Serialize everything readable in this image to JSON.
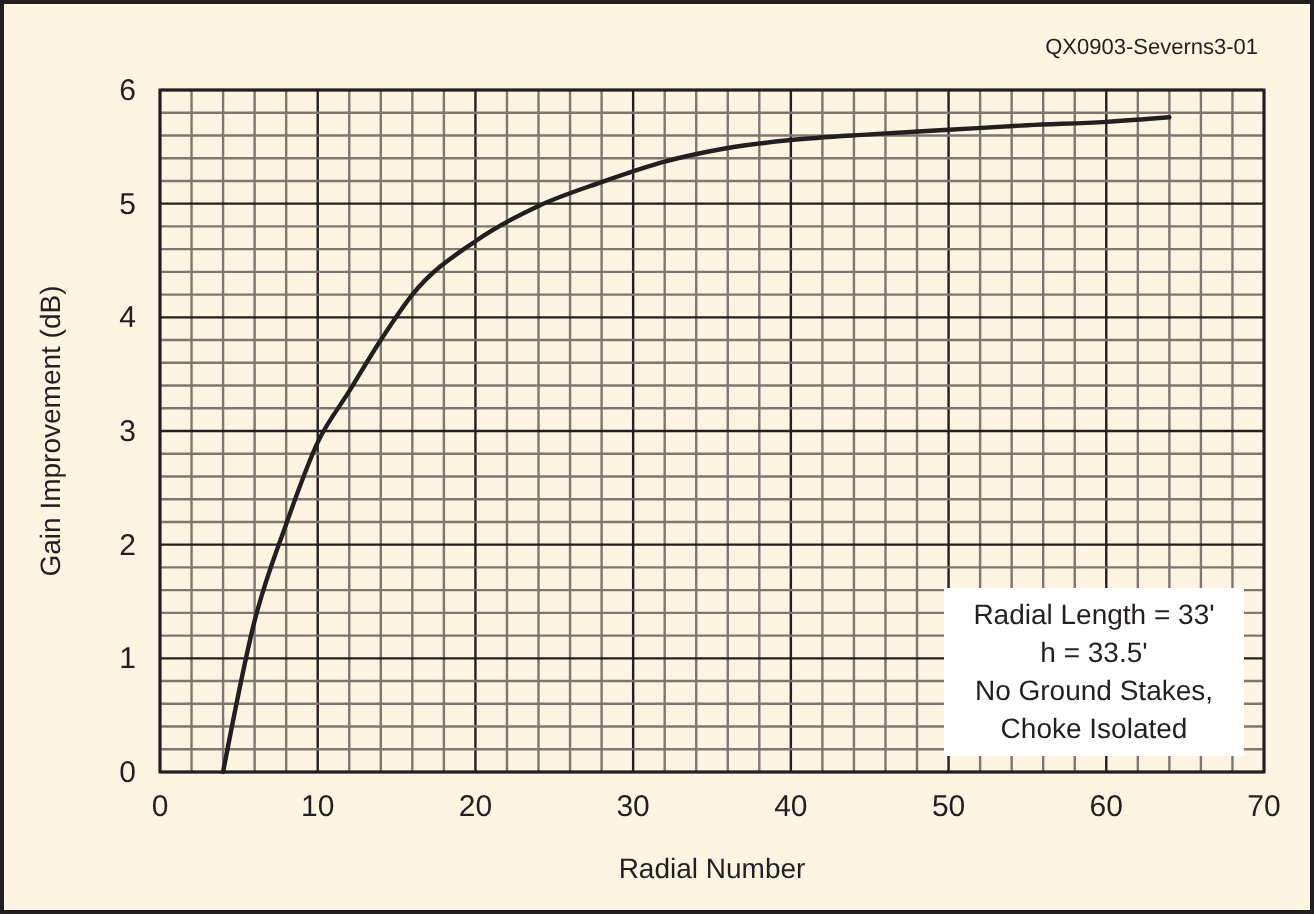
{
  "chart_data": {
    "type": "line",
    "xlabel": "Radial Number",
    "ylabel": "Gain Improvement (dB)",
    "x": [
      4,
      6,
      8,
      10,
      12,
      14,
      16,
      20,
      24,
      28,
      32,
      36,
      40,
      45,
      50,
      55,
      60,
      64
    ],
    "series": [
      {
        "color": "#231f20",
        "values": [
          0,
          1.33,
          2.18,
          2.9,
          3.35,
          3.8,
          4.2,
          4.67,
          4.98,
          5.19,
          5.37,
          5.49,
          5.56,
          5.61,
          5.65,
          5.69,
          5.72,
          5.76
        ]
      }
    ],
    "xlim": [
      0,
      70
    ],
    "ylim": [
      0,
      6
    ],
    "xticks": [
      0,
      {
        "value": 2,
        "label": null
      },
      {
        "value": 4,
        "label": null
      },
      {
        "value": 6,
        "label": null
      },
      {
        "value": 8,
        "label": null
      },
      10,
      {
        "value": 12,
        "label": null
      },
      {
        "value": 14,
        "label": null
      },
      {
        "value": 16,
        "label": null
      },
      {
        "value": 18,
        "label": null
      },
      20,
      {
        "value": 22,
        "label": null
      },
      {
        "value": 24,
        "label": null
      },
      {
        "value": 26,
        "label": null
      },
      {
        "value": 28,
        "label": null
      },
      30,
      {
        "value": 32,
        "label": null
      },
      {
        "value": 34,
        "label": null
      },
      {
        "value": 36,
        "label": null
      },
      {
        "value": 38,
        "label": null
      },
      40,
      {
        "value": 42,
        "label": null
      },
      {
        "value": 44,
        "label": null
      },
      {
        "value": 46,
        "label": null
      },
      {
        "value": 48,
        "label": null
      },
      50,
      {
        "value": 52,
        "label": null
      },
      {
        "value": 54,
        "label": null
      },
      {
        "value": 56,
        "label": null
      },
      {
        "value": 58,
        "label": null
      },
      60,
      {
        "value": 62,
        "label": null
      },
      {
        "value": 64,
        "label": null
      },
      {
        "value": 66,
        "label": null
      },
      {
        "value": 68,
        "label": null
      },
      70
    ],
    "yticks": [
      0,
      {
        "value": 0.2,
        "label": null
      },
      {
        "value": 0.4,
        "label": null
      },
      {
        "value": 0.6,
        "label": null
      },
      {
        "value": 0.8,
        "label": null
      },
      1,
      {
        "value": 1.2,
        "label": null
      },
      {
        "value": 1.4,
        "label": null
      },
      {
        "value": 1.6,
        "label": null
      },
      {
        "value": 1.8,
        "label": null
      },
      2,
      {
        "value": 2.2,
        "label": null
      },
      {
        "value": 2.4,
        "label": null
      },
      {
        "value": 2.6,
        "label": null
      },
      {
        "value": 2.8,
        "label": null
      },
      3,
      {
        "value": 3.2,
        "label": null
      },
      {
        "value": 3.4,
        "label": null
      },
      {
        "value": 3.6,
        "label": null
      },
      {
        "value": 3.8,
        "label": null
      },
      4,
      {
        "value": 4.2,
        "label": null
      },
      {
        "value": 4.4,
        "label": null
      },
      {
        "value": 4.6,
        "label": null
      },
      {
        "value": 4.8,
        "label": null
      },
      5,
      {
        "value": 5.2,
        "label": null
      },
      {
        "value": 5.4,
        "label": null
      },
      {
        "value": 5.6,
        "label": null
      },
      {
        "value": 5.8,
        "label": null
      },
      6
    ],
    "grid": true,
    "marker": "none",
    "line_style": "solid",
    "annotations": [
      "QX0903-Severns3-01",
      "Radial Length = 33'\nh = 33.5'\nNo Ground Stakes,\nChoke Isolated"
    ]
  }
}
